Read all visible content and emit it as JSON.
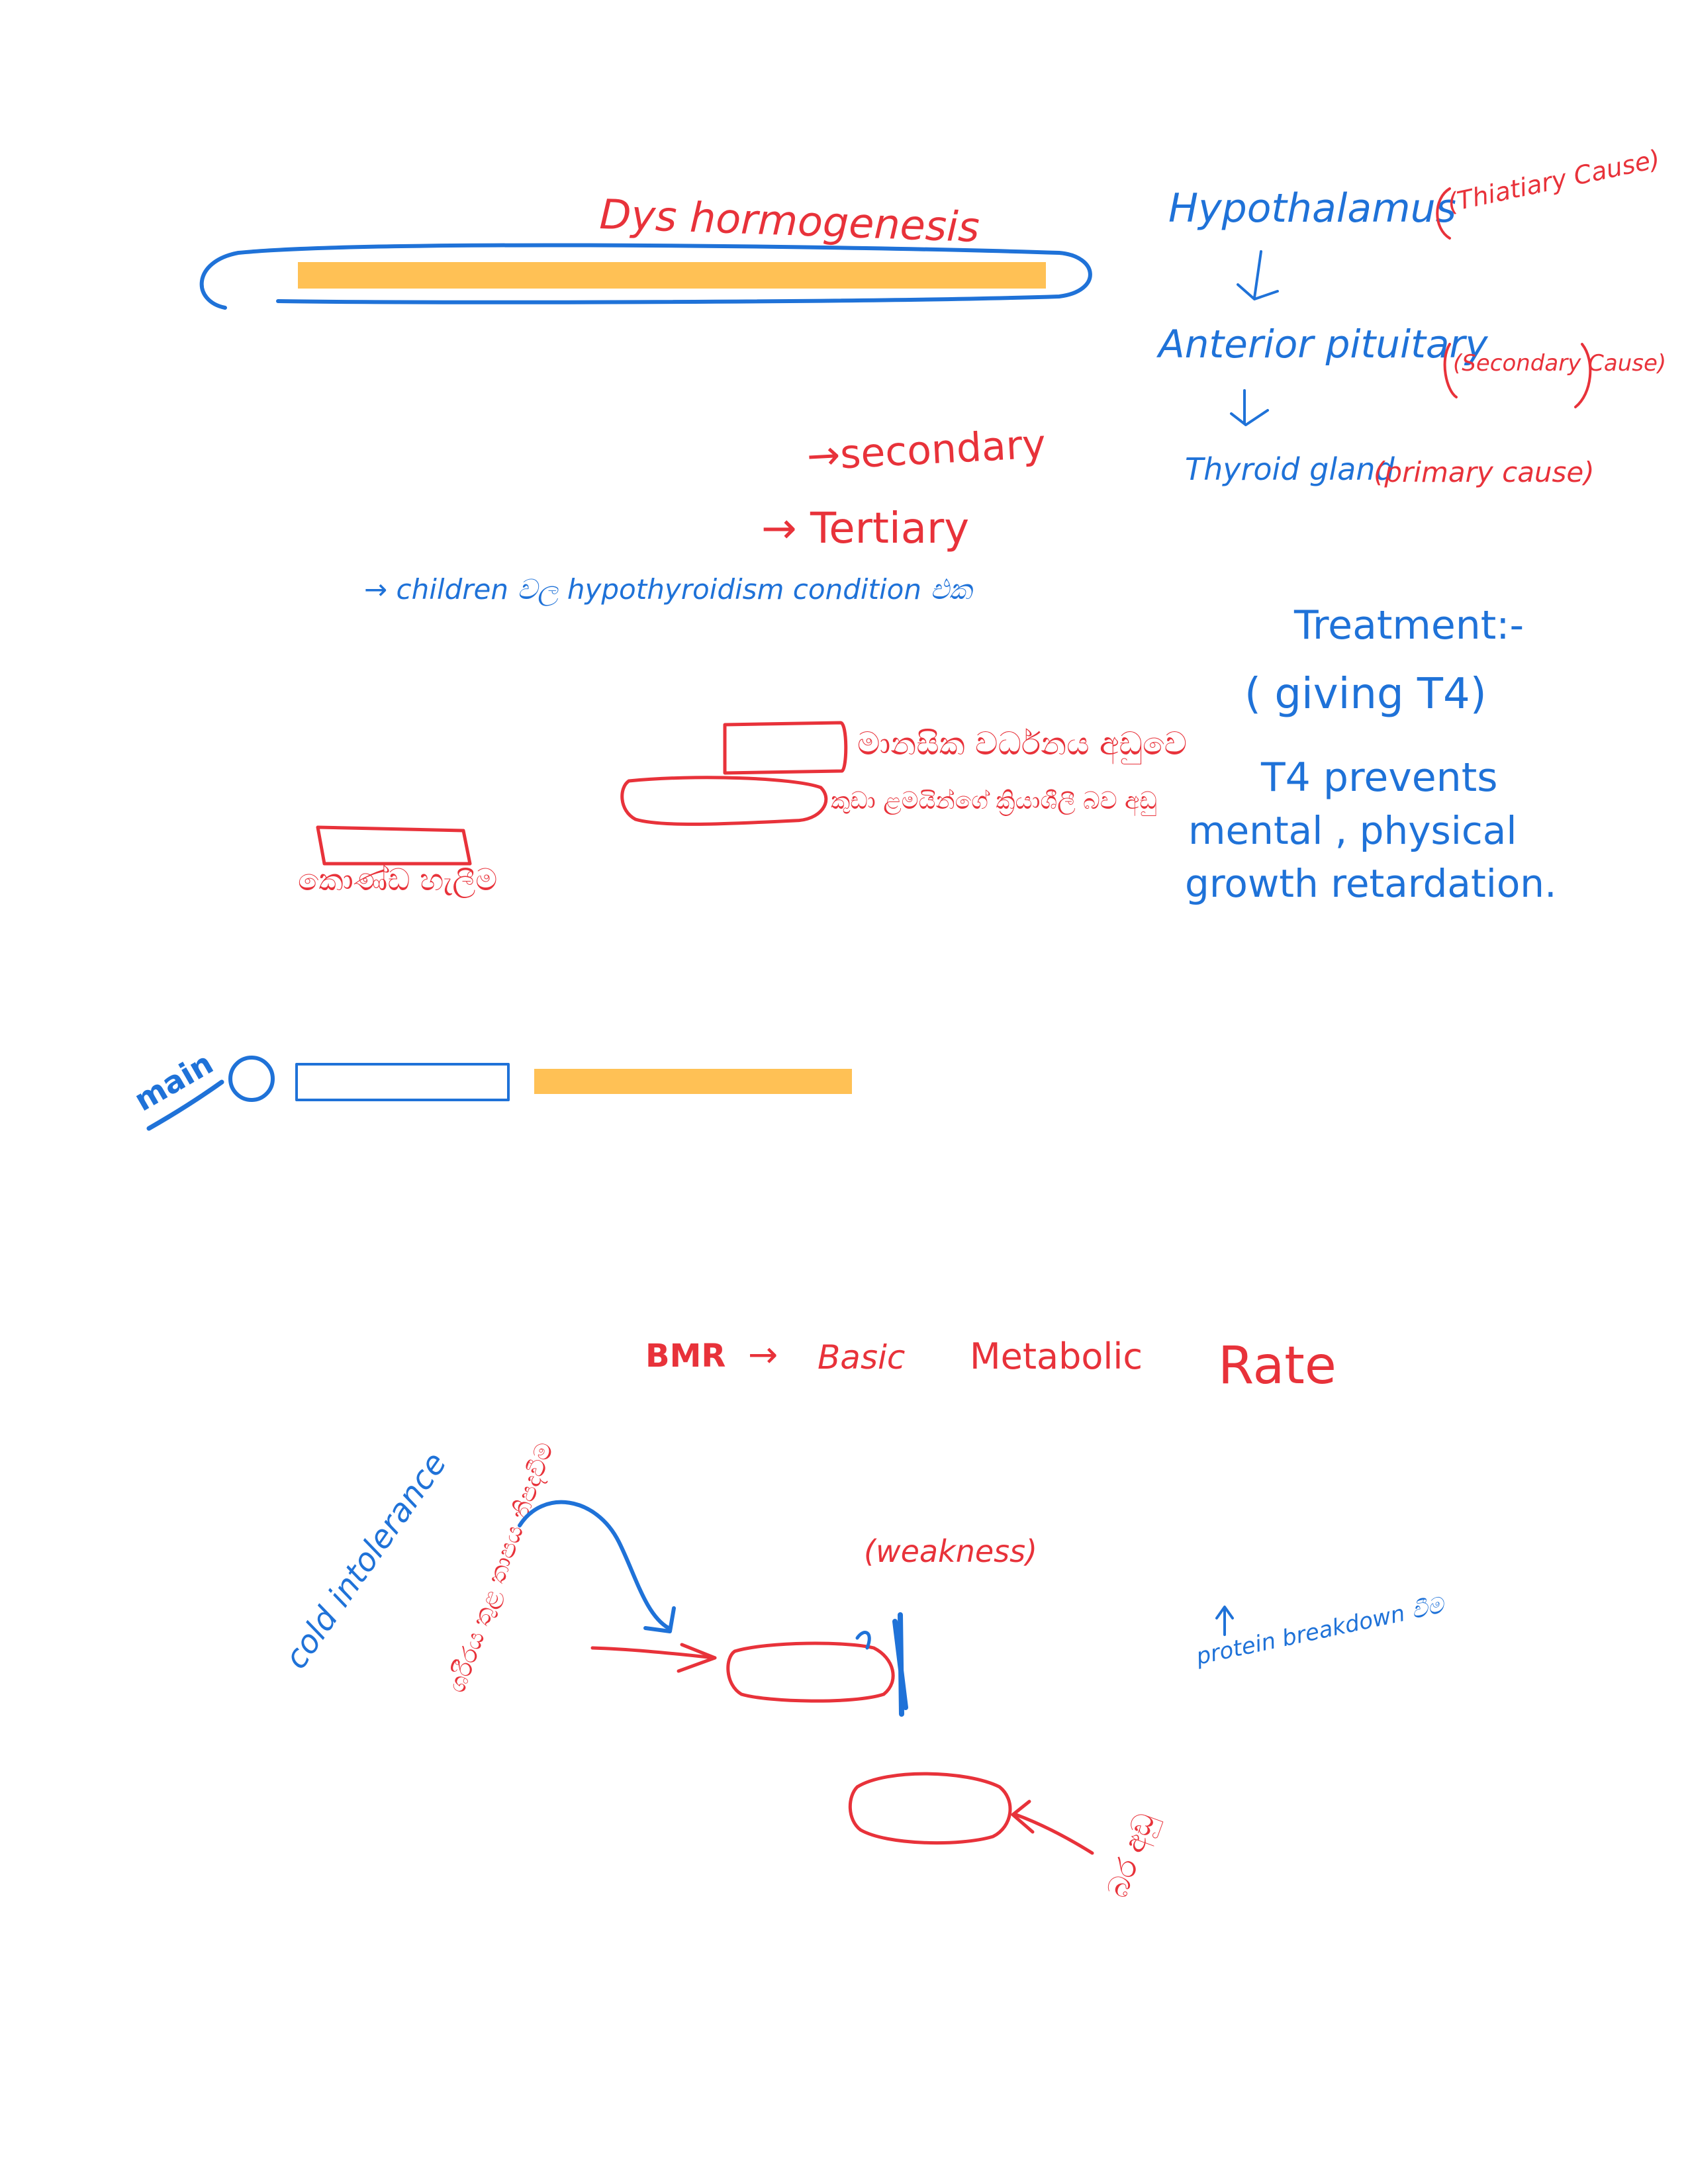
{
  "title": {
    "text": "Dys hormogenesis"
  },
  "hierarchy": {
    "hypothalamus": "Hypothalamus",
    "tertiary_cause": "(Thiatiary Cause)",
    "anterior_pituitary": "Anterior pituitary",
    "secondary_cause": "(Secondary Cause)",
    "thyroid_gland": "Thyroid gland",
    "primary_cause": "(primary cause)"
  },
  "labels": {
    "secondary": "→secondary",
    "tertiary": "→ Tertiary",
    "children_line": "→ children වල hypothyroidism condition එක"
  },
  "treatment": {
    "heading": "Treatment:-",
    "giving": "( giving T4)",
    "prevents": "T4 prevents",
    "mental_physical": "mental , physical",
    "growth_retardation": "growth retardation."
  },
  "sinhala_notes": {
    "line1": "මානසික වර්ධනය අඩුවෙ",
    "line2": "කුඩා ළමයින්ගේ ක්‍රියාශීලී බව අඩු",
    "line3": "කොණ්ඩ හැලීම"
  },
  "main_label": "main",
  "bmr": {
    "abbr": "BMR",
    "arrow": "→",
    "basic": "Basic",
    "metabolic": "Metabolic",
    "rate": "Rate"
  },
  "lower": {
    "cold_intolerance": "cold intolerance",
    "sinhala_arrow_note": "ශරීරය තුළ තාපය නිපදවීම",
    "weakness": "(weakness)",
    "protein_breakdown": "protein breakdown වීම",
    "sinhala_bottom": "බර අඩු"
  },
  "colors": {
    "red_ink": "#e8323a",
    "blue_ink": "#1f72d8",
    "highlighter": "#ffc155"
  }
}
